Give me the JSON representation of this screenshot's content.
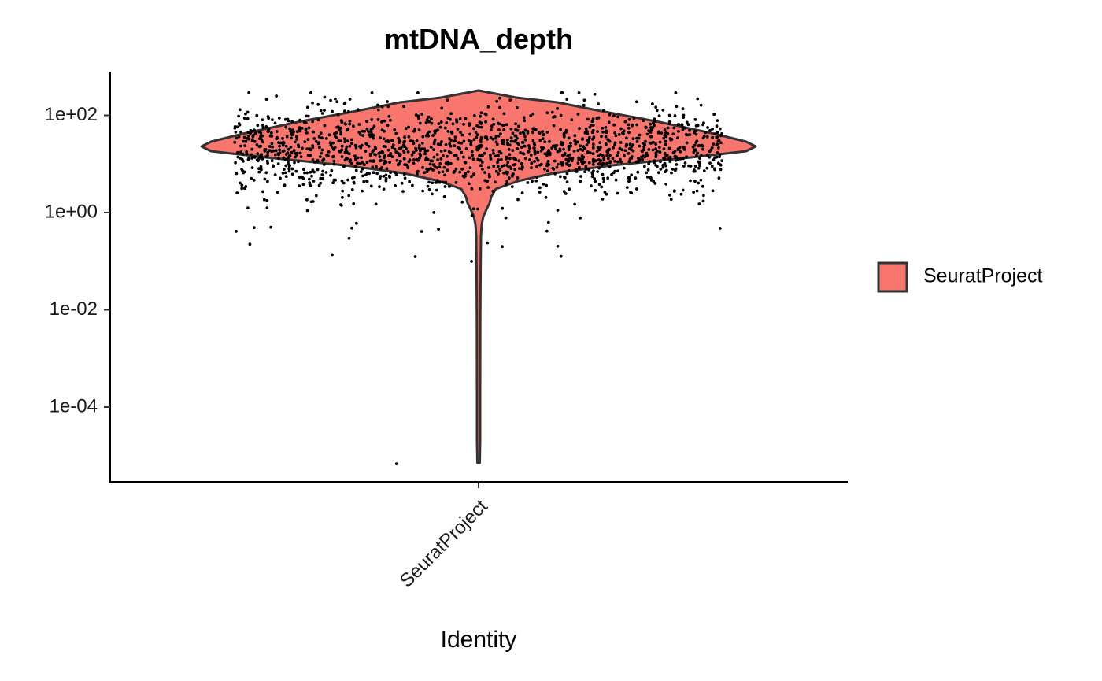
{
  "chart_data": {
    "type": "violin",
    "title": "mtDNA_depth",
    "xlabel": "Identity",
    "ylabel": "",
    "y_scale": "log10",
    "ylim": [
      5e-06,
      800
    ],
    "y_ticks": [
      {
        "value": 0.0001,
        "label": "1e-04"
      },
      {
        "value": 0.01,
        "label": "1e-02"
      },
      {
        "value": 1,
        "label": "1e+00"
      },
      {
        "value": 100,
        "label": "1e+02"
      }
    ],
    "categories": [
      "SeuratProject"
    ],
    "legend": {
      "placement": "right",
      "entries": [
        {
          "label": "SeuratProject",
          "color": "#F8766D"
        }
      ]
    },
    "fill_color": "#F8766D",
    "outline_color": "#333333",
    "point_color": "#000000",
    "grid": false,
    "approx_median": 20,
    "approx_min": 6.8e-06,
    "approx_max": 290,
    "cell_count_approx": 1600
  }
}
